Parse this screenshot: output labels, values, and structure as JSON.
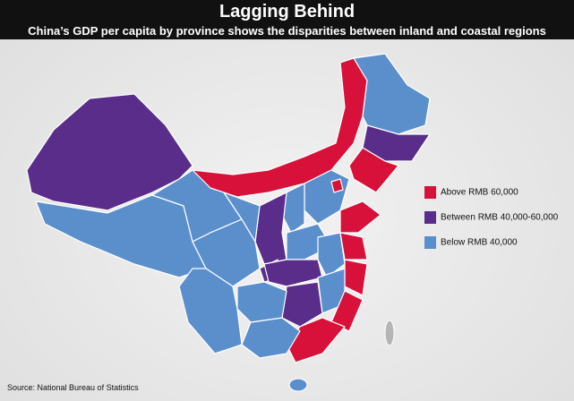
{
  "header": {
    "title": "Lagging Behind",
    "subtitle": "China’s GDP per capita by province shows the disparities between inland and coastal regions"
  },
  "legend": [
    {
      "label": "Above RMB 60,000",
      "color": "#d7113a"
    },
    {
      "label": "Between RMB 40,000-60,000",
      "color": "#5b2d8a"
    },
    {
      "label": "Below RMB 40,000",
      "color": "#5b8fcc"
    }
  ],
  "source": "Source: National Bureau of Statistics"
}
